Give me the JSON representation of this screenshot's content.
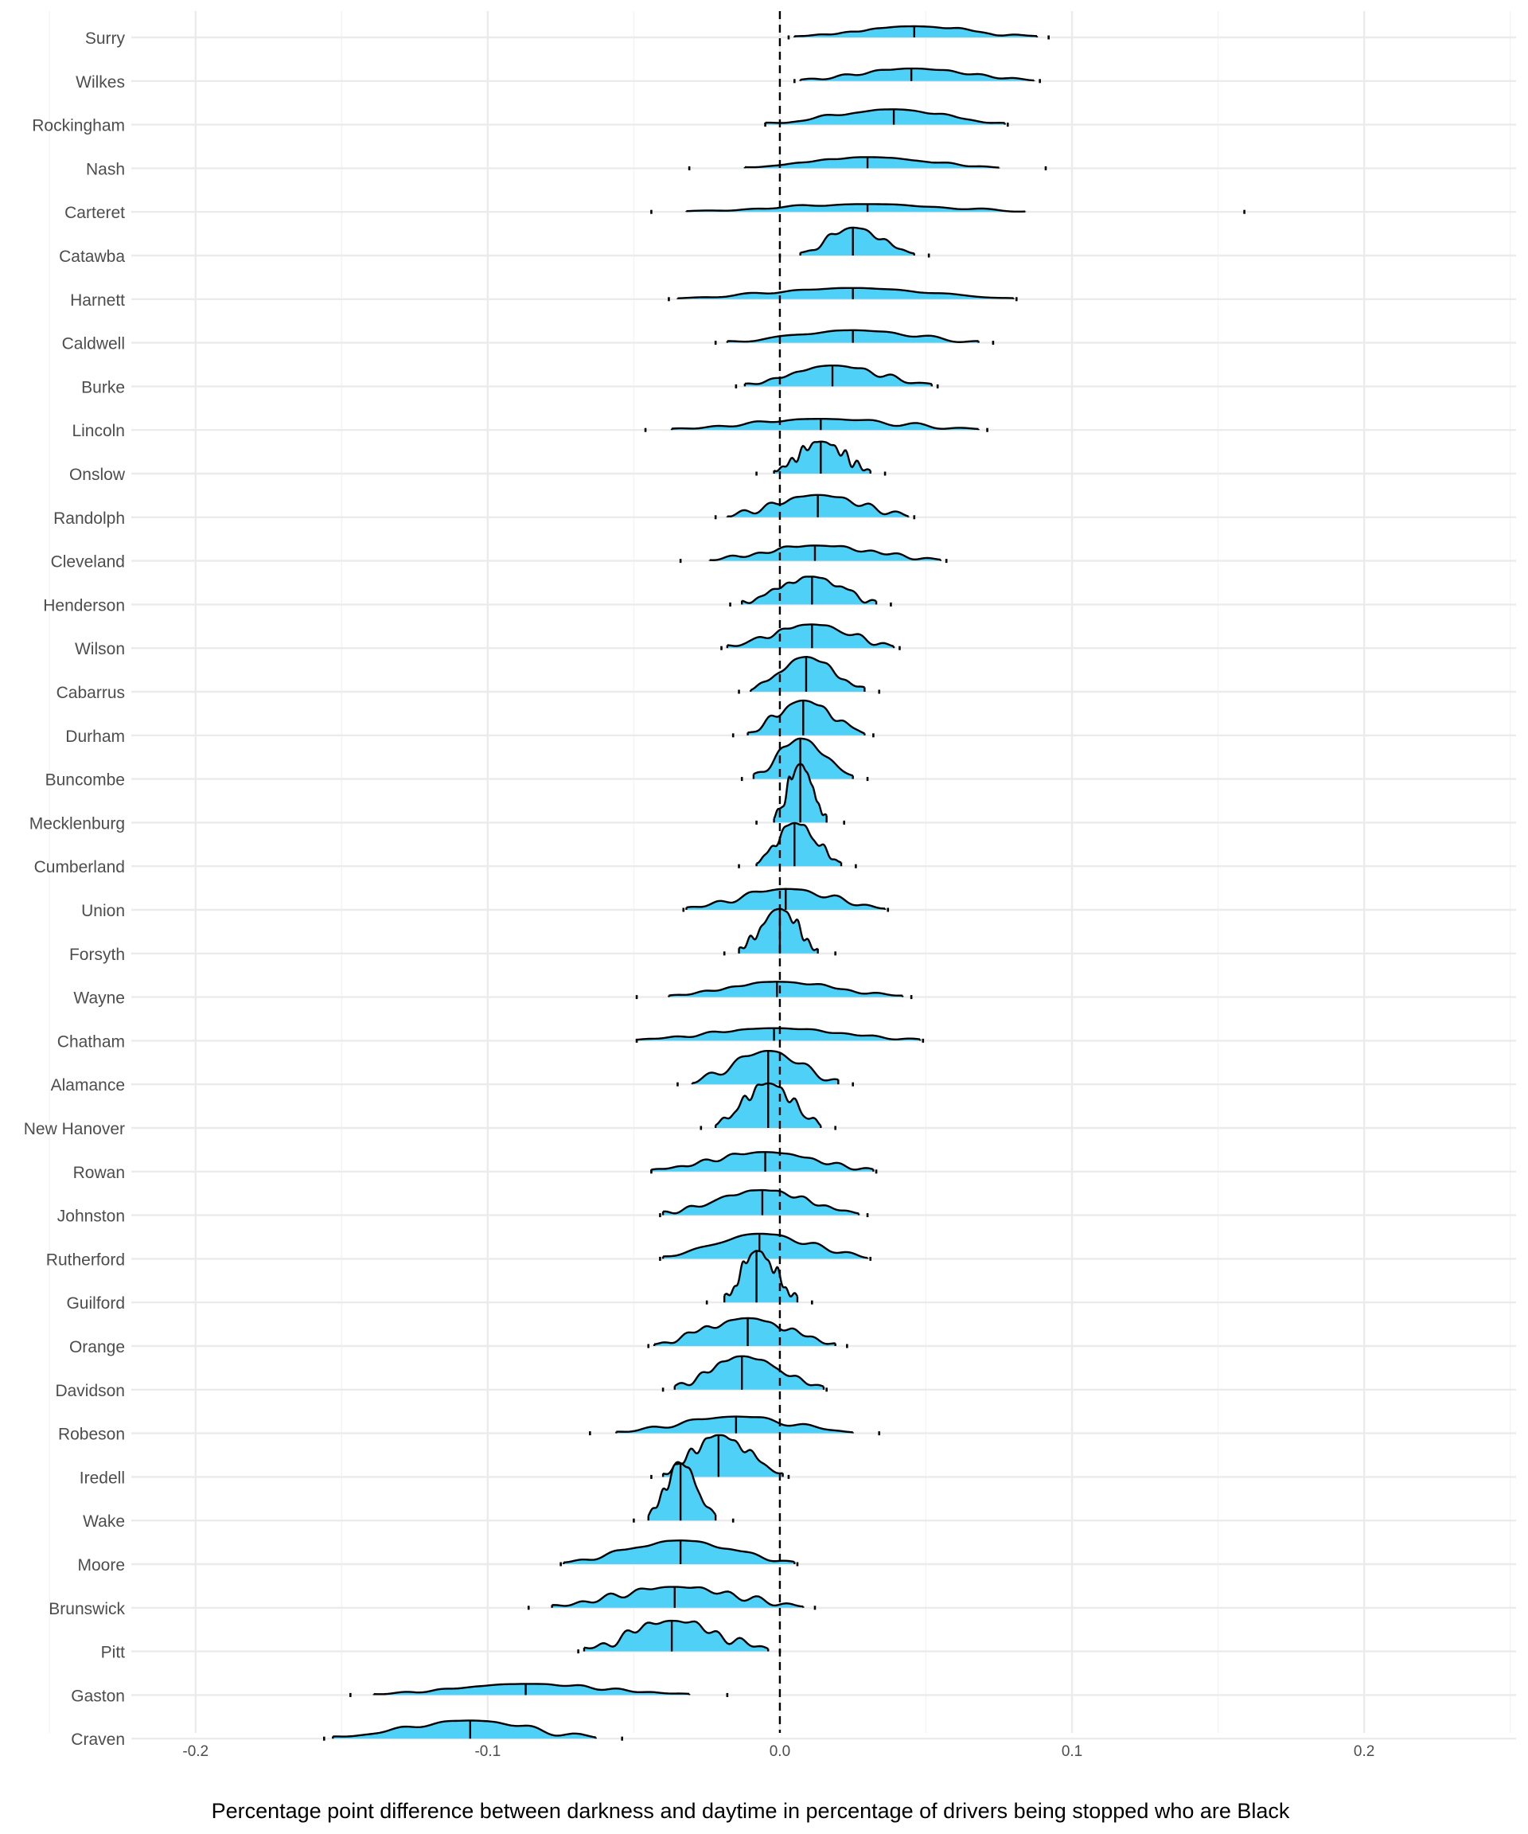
{
  "chart_data": {
    "type": "ridgeline",
    "xlabel": "Percentage point difference between darkness and daytime in percentage of drivers being stopped who are Black",
    "ylabel": "",
    "xlim": [
      -0.222,
      0.252
    ],
    "xticks": [
      -0.2,
      -0.1,
      0.0,
      0.1,
      0.2
    ],
    "xtick_labels": [
      "-0.2",
      "-0.1",
      "0.0",
      "0.1",
      "0.2"
    ],
    "reference_line": 0.0,
    "grid": true,
    "fill_color": "#4fd0f7",
    "counties": [
      {
        "name": "Surry",
        "q05": 0.005,
        "median": 0.046,
        "q95": 0.088,
        "min": 0.003,
        "max": 0.092,
        "peak": 0.4
      },
      {
        "name": "Wilkes",
        "q05": 0.007,
        "median": 0.045,
        "q95": 0.087,
        "min": 0.005,
        "max": 0.089,
        "peak": 0.45
      },
      {
        "name": "Rockingham",
        "q05": -0.005,
        "median": 0.039,
        "q95": 0.077,
        "min": -0.005,
        "max": 0.078,
        "peak": 0.55
      },
      {
        "name": "Nash",
        "q05": -0.012,
        "median": 0.03,
        "q95": 0.075,
        "min": -0.031,
        "max": 0.091,
        "peak": 0.4
      },
      {
        "name": "Carteret",
        "q05": -0.032,
        "median": 0.03,
        "q95": 0.084,
        "min": -0.044,
        "max": 0.159,
        "peak": 0.28
      },
      {
        "name": "Catawba",
        "q05": 0.007,
        "median": 0.025,
        "q95": 0.046,
        "min": 0.0,
        "max": 0.051,
        "peak": 1.0
      },
      {
        "name": "Harnett",
        "q05": -0.035,
        "median": 0.025,
        "q95": 0.08,
        "min": -0.038,
        "max": 0.081,
        "peak": 0.4
      },
      {
        "name": "Caldwell",
        "q05": -0.018,
        "median": 0.025,
        "q95": 0.068,
        "min": -0.022,
        "max": 0.073,
        "peak": 0.45
      },
      {
        "name": "Burke",
        "q05": -0.012,
        "median": 0.018,
        "q95": 0.052,
        "min": -0.015,
        "max": 0.054,
        "peak": 0.75
      },
      {
        "name": "Lincoln",
        "q05": -0.037,
        "median": 0.014,
        "q95": 0.068,
        "min": -0.046,
        "max": 0.071,
        "peak": 0.4
      },
      {
        "name": "Onslow",
        "q05": -0.002,
        "median": 0.014,
        "q95": 0.031,
        "min": -0.008,
        "max": 0.036,
        "peak": 1.15
      },
      {
        "name": "Randolph",
        "q05": -0.018,
        "median": 0.013,
        "q95": 0.044,
        "min": -0.022,
        "max": 0.046,
        "peak": 0.8
      },
      {
        "name": "Cleveland",
        "q05": -0.024,
        "median": 0.012,
        "q95": 0.055,
        "min": -0.034,
        "max": 0.057,
        "peak": 0.55
      },
      {
        "name": "Henderson",
        "q05": -0.013,
        "median": 0.011,
        "q95": 0.033,
        "min": -0.017,
        "max": 0.038,
        "peak": 1.0
      },
      {
        "name": "Wilson",
        "q05": -0.018,
        "median": 0.011,
        "q95": 0.039,
        "min": -0.02,
        "max": 0.041,
        "peak": 0.85
      },
      {
        "name": "Cabarrus",
        "q05": -0.01,
        "median": 0.009,
        "q95": 0.029,
        "min": -0.014,
        "max": 0.034,
        "peak": 1.25
      },
      {
        "name": "Durham",
        "q05": -0.011,
        "median": 0.008,
        "q95": 0.029,
        "min": -0.016,
        "max": 0.032,
        "peak": 1.25
      },
      {
        "name": "Buncombe",
        "q05": -0.009,
        "median": 0.007,
        "q95": 0.025,
        "min": -0.013,
        "max": 0.03,
        "peak": 1.45
      },
      {
        "name": "Mecklenburg",
        "q05": -0.002,
        "median": 0.007,
        "q95": 0.016,
        "min": -0.008,
        "max": 0.022,
        "peak": 2.1
      },
      {
        "name": "Cumberland",
        "q05": -0.008,
        "median": 0.005,
        "q95": 0.021,
        "min": -0.014,
        "max": 0.026,
        "peak": 1.55
      },
      {
        "name": "Union",
        "q05": -0.032,
        "median": 0.002,
        "q95": 0.036,
        "min": -0.033,
        "max": 0.037,
        "peak": 0.75
      },
      {
        "name": "Forsyth",
        "q05": -0.014,
        "median": 0.0,
        "q95": 0.013,
        "min": -0.019,
        "max": 0.019,
        "peak": 1.6
      },
      {
        "name": "Wayne",
        "q05": -0.038,
        "median": -0.001,
        "q95": 0.042,
        "min": -0.049,
        "max": 0.045,
        "peak": 0.55
      },
      {
        "name": "Chatham",
        "q05": -0.049,
        "median": -0.002,
        "q95": 0.048,
        "min": -0.049,
        "max": 0.049,
        "peak": 0.45
      },
      {
        "name": "Alamance",
        "q05": -0.03,
        "median": -0.004,
        "q95": 0.02,
        "min": -0.035,
        "max": 0.025,
        "peak": 1.2
      },
      {
        "name": "New Hanover",
        "q05": -0.022,
        "median": -0.004,
        "q95": 0.014,
        "min": -0.027,
        "max": 0.019,
        "peak": 1.6
      },
      {
        "name": "Rowan",
        "q05": -0.044,
        "median": -0.005,
        "q95": 0.032,
        "min": -0.044,
        "max": 0.033,
        "peak": 0.7
      },
      {
        "name": "Johnston",
        "q05": -0.04,
        "median": -0.006,
        "q95": 0.027,
        "min": -0.041,
        "max": 0.03,
        "peak": 0.9
      },
      {
        "name": "Rutherford",
        "q05": -0.04,
        "median": -0.007,
        "q95": 0.03,
        "min": -0.041,
        "max": 0.031,
        "peak": 0.9
      },
      {
        "name": "Guilford",
        "q05": -0.019,
        "median": -0.008,
        "q95": 0.006,
        "min": -0.025,
        "max": 0.011,
        "peak": 1.85
      },
      {
        "name": "Orange",
        "q05": -0.043,
        "median": -0.011,
        "q95": 0.019,
        "min": -0.045,
        "max": 0.023,
        "peak": 1.0
      },
      {
        "name": "Davidson",
        "q05": -0.036,
        "median": -0.013,
        "q95": 0.015,
        "min": -0.04,
        "max": 0.016,
        "peak": 1.2
      },
      {
        "name": "Robeson",
        "q05": -0.056,
        "median": -0.015,
        "q95": 0.025,
        "min": -0.065,
        "max": 0.034,
        "peak": 0.6
      },
      {
        "name": "Iredell",
        "q05": -0.04,
        "median": -0.021,
        "q95": 0.001,
        "min": -0.044,
        "max": 0.003,
        "peak": 1.5
      },
      {
        "name": "Wake",
        "q05": -0.045,
        "median": -0.034,
        "q95": -0.022,
        "min": -0.05,
        "max": -0.016,
        "peak": 2.05
      },
      {
        "name": "Moore",
        "q05": -0.074,
        "median": -0.034,
        "q95": 0.005,
        "min": -0.075,
        "max": 0.006,
        "peak": 0.85
      },
      {
        "name": "Brunswick",
        "q05": -0.078,
        "median": -0.036,
        "q95": 0.008,
        "min": -0.086,
        "max": 0.012,
        "peak": 0.75
      },
      {
        "name": "Pitt",
        "q05": -0.067,
        "median": -0.037,
        "q95": -0.004,
        "min": -0.069,
        "max": 0.0,
        "peak": 1.1
      },
      {
        "name": "Gaston",
        "q05": -0.139,
        "median": -0.087,
        "q95": -0.031,
        "min": -0.147,
        "max": -0.018,
        "peak": 0.4
      },
      {
        "name": "Craven",
        "q05": -0.153,
        "median": -0.106,
        "q95": -0.063,
        "min": -0.156,
        "max": -0.054,
        "peak": 0.65
      }
    ]
  }
}
